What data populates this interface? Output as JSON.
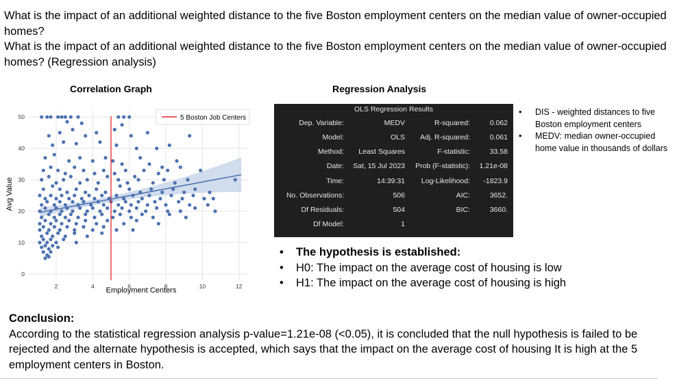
{
  "question": {
    "line1": "What is the impact of an additional weighted distance to the five Boston employment centers on the median value of owner-occupied homes?",
    "line2": "What is the impact of an additional weighted distance to the five Boston employment centers on the median value of owner-occupied homes? (Regression analysis)"
  },
  "correlation_title": "Correlation Graph",
  "regression_title": "Regression Analysis",
  "regression_table": {
    "title": "OLS Regression Results",
    "left": [
      {
        "label": "Dep. Variable:",
        "value": "MEDV"
      },
      {
        "label": "Model:",
        "value": "OLS"
      },
      {
        "label": "Method:",
        "value": "Least Squares"
      },
      {
        "label": "Date:",
        "value": "Sat, 15 Jul 2023"
      },
      {
        "label": "Time:",
        "value": "14:39:31"
      },
      {
        "label": "No. Observations:",
        "value": "506"
      },
      {
        "label": "Df Residuals:",
        "value": "504"
      },
      {
        "label": "Df Model:",
        "value": "1"
      }
    ],
    "right": [
      {
        "label": "R-squared:",
        "value": "0.062"
      },
      {
        "label": "Adj. R-squared:",
        "value": "0.061"
      },
      {
        "label": "F-statistic:",
        "value": "33.58"
      },
      {
        "label": "Prob (F-statistic):",
        "value": "1.21e-08"
      },
      {
        "label": "Log-Likelihood:",
        "value": "-1823.9"
      },
      {
        "label": "AIC:",
        "value": "3652."
      },
      {
        "label": "BIC:",
        "value": "3660."
      }
    ]
  },
  "notes": [
    "DIS - weighted distances to five Boston employment centers",
    "MEDV: median owner-occupied home value in thousands of dollars"
  ],
  "hypothesis": {
    "heading": "The hypothesis is established:",
    "h0": "H0: The impact on the average cost of housing is low",
    "h1": "H1: The impact on the average cost of housing is high"
  },
  "conclusion": {
    "heading": "Conclusion:",
    "text": "According to the statistical regression analysis p-value=1.21e-08 (<0.05), it is concluded that the null hypothesis is failed to be rejected and the alternate hypothesis is accepted, which says that the impact on the average cost of housing It is high at the 5 employment centers in Boston."
  },
  "colors": {
    "points": "#4c72b0",
    "regression_line": "#4c72b0",
    "confidence_band": "#c9d6ea",
    "vline": "#e3242b",
    "grid": "#e5e5e5"
  },
  "chart_data": {
    "type": "scatter",
    "title": "",
    "xlabel": "Employment Centers",
    "ylabel": "Avg Value",
    "xlim": [
      0.5,
      12.5
    ],
    "ylim": [
      -2,
      52
    ],
    "xticks": [
      2,
      4,
      6,
      8,
      10,
      12
    ],
    "yticks": [
      0,
      10,
      20,
      30,
      40,
      50
    ],
    "grid": true,
    "legend": {
      "position": "upper-right",
      "entries": [
        "5 Boston Job Centers"
      ]
    },
    "vline": {
      "x": 5,
      "label": "5 Boston Job Centers"
    },
    "regression": {
      "intercept": 18.39,
      "slope": 1.09,
      "x_range": [
        1.13,
        12.13
      ]
    },
    "points": [
      [
        1.2,
        50
      ],
      [
        1.5,
        50
      ],
      [
        1.7,
        50
      ],
      [
        2.1,
        50
      ],
      [
        2.3,
        50
      ],
      [
        2.5,
        50
      ],
      [
        2.8,
        50
      ],
      [
        3.2,
        50
      ],
      [
        5.4,
        50
      ],
      [
        5.7,
        50
      ],
      [
        6.0,
        50
      ],
      [
        2.6,
        48.5
      ],
      [
        3.4,
        48
      ],
      [
        5.6,
        47.5
      ],
      [
        1.6,
        44
      ],
      [
        2.2,
        45
      ],
      [
        2.9,
        46
      ],
      [
        3.6,
        44
      ],
      [
        4.2,
        45
      ],
      [
        5.2,
        46
      ],
      [
        6.1,
        44
      ],
      [
        7.0,
        45
      ],
      [
        9.3,
        44
      ],
      [
        1.8,
        41
      ],
      [
        2.4,
        42
      ],
      [
        3.1,
        41.5
      ],
      [
        4.4,
        42
      ],
      [
        5.3,
        41
      ],
      [
        6.4,
        40
      ],
      [
        7.5,
        40
      ],
      [
        8.2,
        41
      ],
      [
        1.4,
        37
      ],
      [
        1.9,
        38
      ],
      [
        2.7,
        36
      ],
      [
        3.3,
        37
      ],
      [
        4.0,
        36
      ],
      [
        4.7,
        37
      ],
      [
        5.1,
        36
      ],
      [
        5.6,
        35
      ],
      [
        6.6,
        37
      ],
      [
        7.1,
        35
      ],
      [
        7.8,
        34
      ],
      [
        8.6,
        36
      ],
      [
        1.3,
        33
      ],
      [
        1.7,
        34
      ],
      [
        2.1,
        33
      ],
      [
        2.5,
        32
      ],
      [
        3.0,
        34
      ],
      [
        3.5,
        33
      ],
      [
        4.1,
        32
      ],
      [
        4.6,
        33
      ],
      [
        5.2,
        32
      ],
      [
        5.8,
        33
      ],
      [
        6.3,
        31
      ],
      [
        6.8,
        33
      ],
      [
        7.6,
        32
      ],
      [
        8.1,
        33
      ],
      [
        8.8,
        34
      ],
      [
        9.9,
        33
      ],
      [
        1.2,
        30
      ],
      [
        1.6,
        31
      ],
      [
        2.0,
        29
      ],
      [
        2.4,
        30
      ],
      [
        2.8,
        31
      ],
      [
        3.3,
        29
      ],
      [
        3.7,
        30
      ],
      [
        4.3,
        29
      ],
      [
        4.8,
        31
      ],
      [
        5.4,
        30
      ],
      [
        5.9,
        29
      ],
      [
        6.5,
        30
      ],
      [
        7.3,
        29
      ],
      [
        7.9,
        30
      ],
      [
        8.5,
        29
      ],
      [
        9.2,
        30
      ],
      [
        11.8,
        30
      ],
      [
        1.3,
        27
      ],
      [
        1.8,
        28
      ],
      [
        2.2,
        27
      ],
      [
        2.6,
        26
      ],
      [
        3.1,
        27
      ],
      [
        3.6,
        26
      ],
      [
        4.2,
        27
      ],
      [
        4.7,
        26
      ],
      [
        5.5,
        28
      ],
      [
        6.0,
        27
      ],
      [
        6.6,
        26
      ],
      [
        7.2,
        27
      ],
      [
        7.8,
        26
      ],
      [
        8.4,
        27
      ],
      [
        9.0,
        26
      ],
      [
        9.6,
        27
      ],
      [
        10.4,
        26
      ],
      [
        1.1,
        25
      ],
      [
        1.4,
        24
      ],
      [
        1.7,
        25
      ],
      [
        2.0,
        24
      ],
      [
        2.3,
        25
      ],
      [
        2.7,
        24
      ],
      [
        3.0,
        25
      ],
      [
        3.4,
        24
      ],
      [
        3.8,
        25
      ],
      [
        4.1,
        24
      ],
      [
        4.5,
        25
      ],
      [
        4.9,
        24
      ],
      [
        5.3,
        25
      ],
      [
        5.7,
        24
      ],
      [
        6.2,
        25
      ],
      [
        6.7,
        24
      ],
      [
        7.1,
        25
      ],
      [
        7.7,
        24
      ],
      [
        8.3,
        25
      ],
      [
        8.9,
        24
      ],
      [
        9.5,
        25
      ],
      [
        10.1,
        24
      ],
      [
        10.6,
        24
      ],
      [
        1.2,
        22
      ],
      [
        1.5,
        23
      ],
      [
        1.9,
        22
      ],
      [
        2.2,
        23
      ],
      [
        2.5,
        22
      ],
      [
        2.9,
        23
      ],
      [
        3.2,
        22
      ],
      [
        3.5,
        23
      ],
      [
        3.9,
        22
      ],
      [
        4.3,
        23
      ],
      [
        4.6,
        22
      ],
      [
        5.0,
        23
      ],
      [
        5.4,
        22
      ],
      [
        5.8,
        23
      ],
      [
        6.1,
        22
      ],
      [
        6.5,
        23
      ],
      [
        7.0,
        22
      ],
      [
        7.4,
        23
      ],
      [
        8.0,
        22
      ],
      [
        8.7,
        23
      ],
      [
        9.3,
        22
      ],
      [
        10.3,
        22
      ],
      [
        1.1,
        20
      ],
      [
        1.4,
        21
      ],
      [
        1.7,
        20
      ],
      [
        2.0,
        21
      ],
      [
        2.3,
        20
      ],
      [
        2.6,
        21
      ],
      [
        2.9,
        20
      ],
      [
        3.3,
        21
      ],
      [
        3.7,
        20
      ],
      [
        4.0,
        21
      ],
      [
        4.4,
        20
      ],
      [
        4.8,
        21
      ],
      [
        5.2,
        20
      ],
      [
        5.6,
        21
      ],
      [
        6.0,
        20
      ],
      [
        6.4,
        21
      ],
      [
        6.9,
        20
      ],
      [
        7.5,
        21
      ],
      [
        8.1,
        20
      ],
      [
        8.8,
        20
      ],
      [
        9.6,
        21
      ],
      [
        10.7,
        20
      ],
      [
        1.2,
        18
      ],
      [
        1.6,
        19
      ],
      [
        1.9,
        18
      ],
      [
        2.2,
        19
      ],
      [
        2.5,
        18
      ],
      [
        2.8,
        19
      ],
      [
        3.2,
        18
      ],
      [
        3.6,
        19
      ],
      [
        4.1,
        18
      ],
      [
        4.5,
        19
      ],
      [
        5.1,
        18
      ],
      [
        5.5,
        19
      ],
      [
        6.1,
        18
      ],
      [
        6.7,
        19
      ],
      [
        7.3,
        18
      ],
      [
        8.2,
        19
      ],
      [
        9.1,
        18
      ],
      [
        1.1,
        16
      ],
      [
        1.4,
        17
      ],
      [
        1.7,
        16
      ],
      [
        2.0,
        17
      ],
      [
        2.3,
        16
      ],
      [
        2.7,
        17
      ],
      [
        3.1,
        16
      ],
      [
        3.6,
        17
      ],
      [
        4.2,
        16
      ],
      [
        4.8,
        17
      ],
      [
        5.7,
        16
      ],
      [
        6.4,
        17
      ],
      [
        7.6,
        16
      ],
      [
        1.1,
        14
      ],
      [
        1.3,
        15
      ],
      [
        1.6,
        14
      ],
      [
        1.9,
        15
      ],
      [
        2.2,
        14
      ],
      [
        2.6,
        15
      ],
      [
        3.0,
        14
      ],
      [
        3.5,
        15
      ],
      [
        4.0,
        14
      ],
      [
        4.6,
        15
      ],
      [
        5.3,
        14
      ],
      [
        6.2,
        14
      ],
      [
        1.2,
        12
      ],
      [
        1.5,
        13
      ],
      [
        1.8,
        12
      ],
      [
        2.1,
        13
      ],
      [
        2.5,
        12
      ],
      [
        3.0,
        13
      ],
      [
        3.7,
        12
      ],
      [
        4.5,
        13
      ],
      [
        1.1,
        10
      ],
      [
        1.3,
        11
      ],
      [
        1.5,
        10
      ],
      [
        1.7,
        11
      ],
      [
        2.0,
        10
      ],
      [
        2.4,
        11
      ],
      [
        3.1,
        10
      ],
      [
        1.2,
        8.5
      ],
      [
        1.4,
        9
      ],
      [
        1.6,
        8
      ],
      [
        1.8,
        9
      ],
      [
        2.1,
        8.5
      ],
      [
        1.3,
        7
      ],
      [
        1.5,
        6
      ],
      [
        1.7,
        7
      ],
      [
        1.4,
        5
      ],
      [
        1.6,
        5.5
      ]
    ]
  }
}
